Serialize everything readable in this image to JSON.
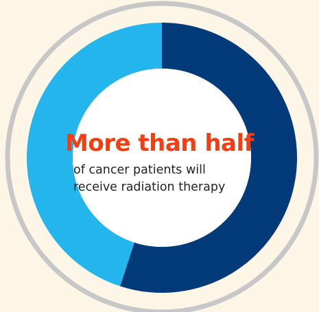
{
  "chart_data": {
    "type": "pie",
    "variant": "donut",
    "title": "More than half",
    "subtitle_lines": [
      "of cancer patients will",
      "receive radiation therapy"
    ],
    "slices": [
      {
        "value": 55,
        "color": "#033a7a"
      },
      {
        "value": 45,
        "color": "#24b5ec"
      }
    ],
    "start_angle_deg": 0,
    "direction": "clockwise"
  },
  "colors": {
    "background": "#fdf6e6",
    "outer_ring": "#c7c7c7",
    "inner_fill": "#ffffff",
    "headline": "#f13e12",
    "body_text": "#222222"
  }
}
